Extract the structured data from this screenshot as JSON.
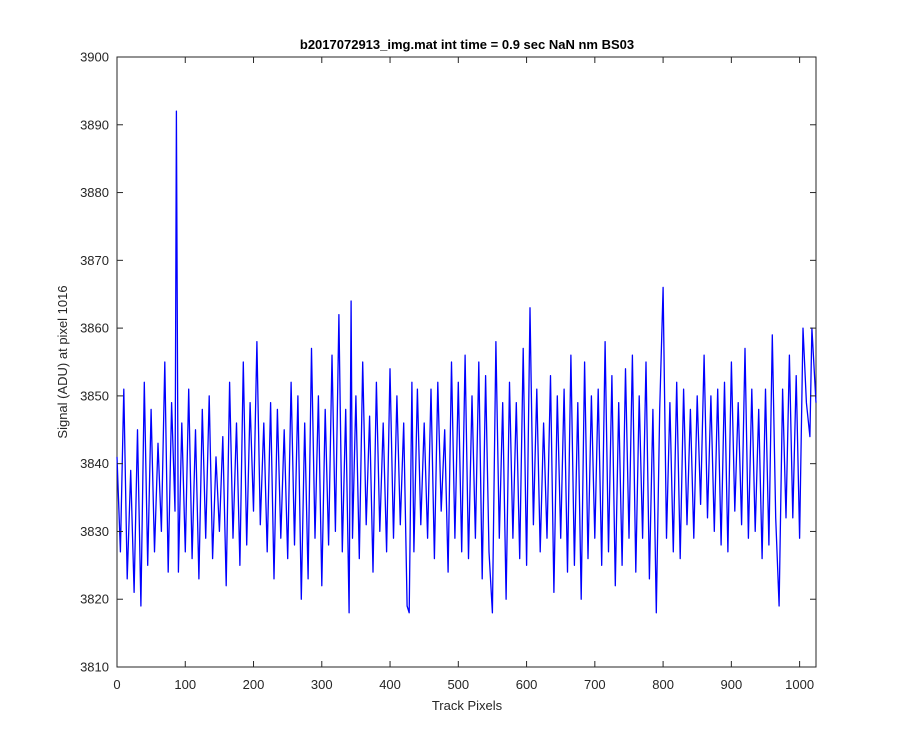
{
  "chart_data": {
    "type": "line",
    "title": "b2017072913_img.mat int time = 0.9 sec  NaN nm BS03",
    "xlabel": "Track Pixels",
    "ylabel": "Signal (ADU) at pixel 1016",
    "xlim": [
      0,
      1024
    ],
    "ylim": [
      3810,
      3900
    ],
    "xticks": [
      0,
      100,
      200,
      300,
      400,
      500,
      600,
      700,
      800,
      900,
      1000
    ],
    "yticks": [
      3810,
      3820,
      3830,
      3840,
      3850,
      3860,
      3870,
      3880,
      3890,
      3900
    ],
    "grid": false,
    "line_color": "#0000ff",
    "series": [
      {
        "name": "",
        "x": [
          0,
          5,
          10,
          15,
          20,
          25,
          30,
          35,
          40,
          45,
          50,
          55,
          60,
          65,
          70,
          75,
          80,
          85,
          87,
          90,
          95,
          100,
          105,
          110,
          115,
          120,
          125,
          130,
          135,
          140,
          145,
          150,
          155,
          160,
          165,
          170,
          175,
          180,
          185,
          190,
          195,
          200,
          205,
          210,
          215,
          220,
          225,
          230,
          235,
          240,
          245,
          250,
          255,
          260,
          265,
          270,
          275,
          280,
          285,
          290,
          295,
          300,
          305,
          310,
          315,
          320,
          325,
          330,
          335,
          340,
          343,
          345,
          350,
          355,
          360,
          365,
          370,
          375,
          380,
          385,
          390,
          395,
          400,
          405,
          410,
          415,
          420,
          425,
          428,
          432,
          435,
          440,
          445,
          450,
          455,
          460,
          465,
          470,
          475,
          480,
          485,
          490,
          495,
          500,
          505,
          510,
          515,
          520,
          525,
          530,
          535,
          540,
          545,
          550,
          555,
          560,
          565,
          570,
          575,
          580,
          585,
          590,
          595,
          600,
          605,
          610,
          615,
          620,
          625,
          630,
          635,
          640,
          645,
          650,
          655,
          660,
          665,
          670,
          675,
          680,
          685,
          690,
          695,
          700,
          705,
          710,
          715,
          720,
          725,
          730,
          735,
          740,
          745,
          750,
          755,
          760,
          765,
          770,
          775,
          780,
          785,
          790,
          795,
          800,
          805,
          810,
          815,
          820,
          825,
          830,
          835,
          840,
          845,
          850,
          855,
          860,
          865,
          870,
          875,
          880,
          885,
          890,
          895,
          900,
          905,
          910,
          915,
          920,
          925,
          930,
          935,
          940,
          945,
          950,
          955,
          960,
          965,
          970,
          975,
          980,
          985,
          990,
          995,
          1000,
          1005,
          1010,
          1015,
          1018,
          1024
        ],
        "values": [
          3841,
          3827,
          3851,
          3823,
          3839,
          3821,
          3845,
          3819,
          3852,
          3825,
          3848,
          3827,
          3843,
          3830,
          3855,
          3824,
          3849,
          3833,
          3892,
          3824,
          3846,
          3827,
          3851,
          3826,
          3845,
          3823,
          3848,
          3829,
          3850,
          3826,
          3841,
          3830,
          3844,
          3822,
          3852,
          3829,
          3846,
          3825,
          3855,
          3828,
          3849,
          3833,
          3858,
          3831,
          3846,
          3827,
          3849,
          3823,
          3848,
          3829,
          3845,
          3826,
          3852,
          3828,
          3850,
          3820,
          3846,
          3823,
          3857,
          3829,
          3850,
          3822,
          3848,
          3828,
          3856,
          3830,
          3862,
          3827,
          3848,
          3818,
          3864,
          3829,
          3850,
          3826,
          3855,
          3831,
          3847,
          3824,
          3852,
          3830,
          3846,
          3827,
          3854,
          3829,
          3850,
          3831,
          3846,
          3819,
          3818,
          3852,
          3827,
          3851,
          3831,
          3846,
          3829,
          3851,
          3826,
          3852,
          3833,
          3845,
          3824,
          3855,
          3829,
          3852,
          3827,
          3856,
          3826,
          3850,
          3829,
          3855,
          3823,
          3853,
          3827,
          3818,
          3858,
          3829,
          3849,
          3820,
          3852,
          3829,
          3849,
          3826,
          3857,
          3825,
          3863,
          3831,
          3851,
          3827,
          3846,
          3829,
          3853,
          3821,
          3850,
          3829,
          3851,
          3824,
          3856,
          3825,
          3849,
          3820,
          3855,
          3826,
          3850,
          3829,
          3851,
          3825,
          3858,
          3827,
          3853,
          3822,
          3849,
          3825,
          3854,
          3829,
          3856,
          3824,
          3850,
          3829,
          3855,
          3823,
          3848,
          3818,
          3848,
          3866,
          3829,
          3849,
          3827,
          3852,
          3826,
          3851,
          3831,
          3848,
          3829,
          3850,
          3834,
          3856,
          3832,
          3850,
          3830,
          3851,
          3828,
          3852,
          3827,
          3855,
          3833,
          3849,
          3831,
          3857,
          3829,
          3851,
          3830,
          3848,
          3826,
          3851,
          3828,
          3859,
          3832,
          3819,
          3851,
          3832,
          3856,
          3832,
          3853,
          3829,
          3860,
          3849,
          3844,
          3860,
          3849
        ]
      }
    ]
  }
}
